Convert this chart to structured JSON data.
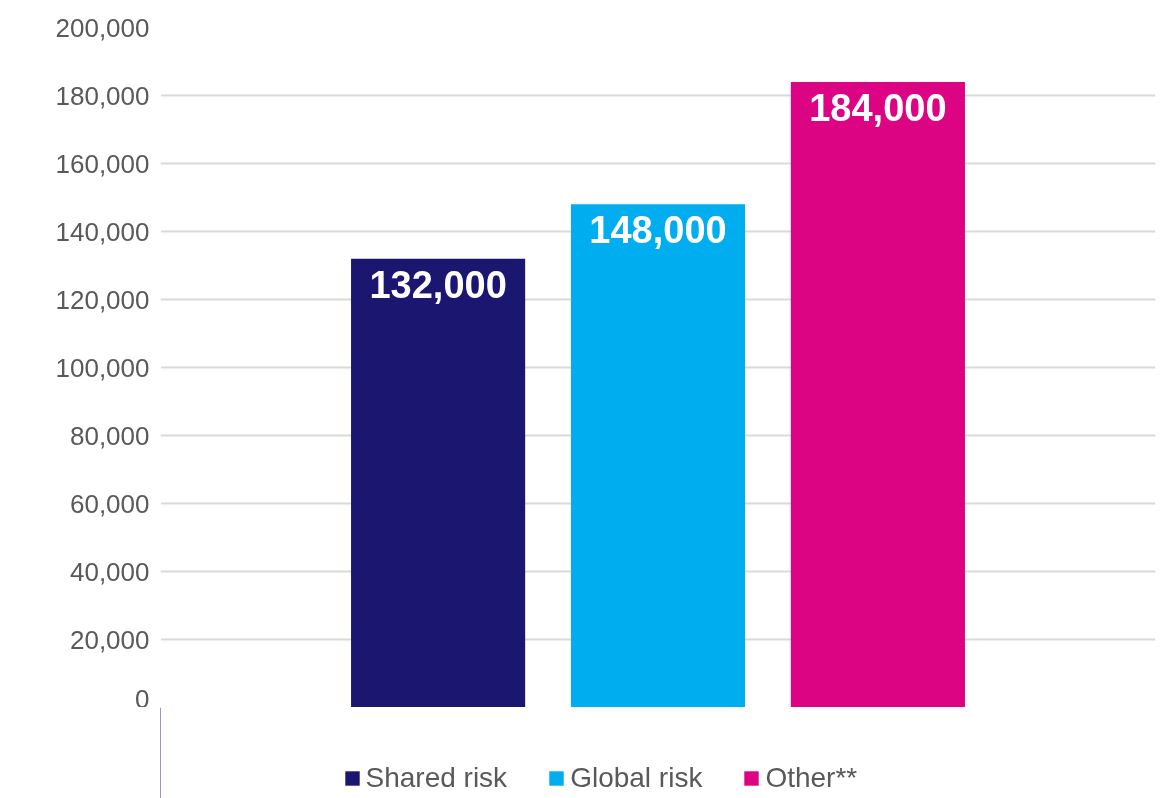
{
  "chart_data": {
    "type": "bar",
    "categories": [
      null
    ],
    "series": [
      {
        "name": "Shared risk",
        "color": "#1b1670",
        "values": [
          132000
        ],
        "value_labels": [
          "132,000"
        ]
      },
      {
        "name": "Global risk",
        "color": "#00adef",
        "values": [
          148000
        ],
        "value_labels": [
          "148,000"
        ]
      },
      {
        "name": "Other**",
        "color": "#dd0483",
        "values": [
          184000
        ],
        "value_labels": [
          "184,000"
        ]
      }
    ],
    "ylim": [
      0,
      200000
    ],
    "yticks": [
      {
        "value": 0,
        "label": "0"
      },
      {
        "value": 20000,
        "label": "20,000"
      },
      {
        "value": 40000,
        "label": "40,000"
      },
      {
        "value": 60000,
        "label": "60,000"
      },
      {
        "value": 80000,
        "label": "80,000"
      },
      {
        "value": 100000,
        "label": "100,000"
      },
      {
        "value": 120000,
        "label": "120,000"
      },
      {
        "value": 140000,
        "label": "140,000"
      },
      {
        "value": 160000,
        "label": "160,000"
      },
      {
        "value": 180000,
        "label": "180,000"
      },
      {
        "value": 200000,
        "label": "200,000"
      }
    ],
    "grid": "y",
    "legend": "bottom"
  }
}
